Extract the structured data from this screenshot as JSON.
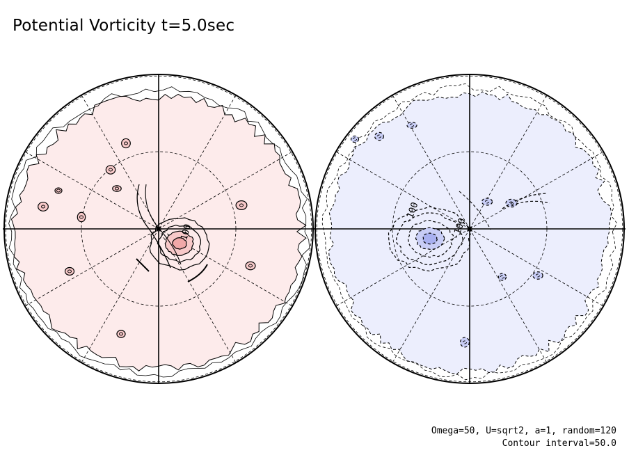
{
  "title": "Potential Vorticity t=5.0sec",
  "parameters_text": "Omega=50, U=sqrt2, a=1, random=120",
  "contour_interval_text": "Contour interval=50.0",
  "chart_data": [
    {
      "type": "contour",
      "projection": "polar-orthographic",
      "hemisphere": "north",
      "dominant_sign": "positive",
      "fill_color": "#fdebeb",
      "core_fill_colors": [
        "#f7c9c9",
        "#f0a8a8"
      ],
      "contour_interval": 50.0,
      "contour_labels": [
        "100"
      ],
      "line_style_positive": "solid",
      "graticule_latitudes_deg": [
        30,
        60
      ],
      "graticule_longitude_spacing_deg": 30
    },
    {
      "type": "contour",
      "projection": "polar-orthographic",
      "hemisphere": "south",
      "dominant_sign": "negative",
      "fill_color": "#eceefd",
      "core_fill_colors": [
        "#c8cdf6",
        "#a8b0f0"
      ],
      "contour_interval": 50.0,
      "contour_labels": [
        "-100",
        "-100"
      ],
      "line_style_negative": "dashed",
      "graticule_latitudes_deg": [
        30,
        60
      ],
      "graticule_longitude_spacing_deg": 30
    }
  ]
}
